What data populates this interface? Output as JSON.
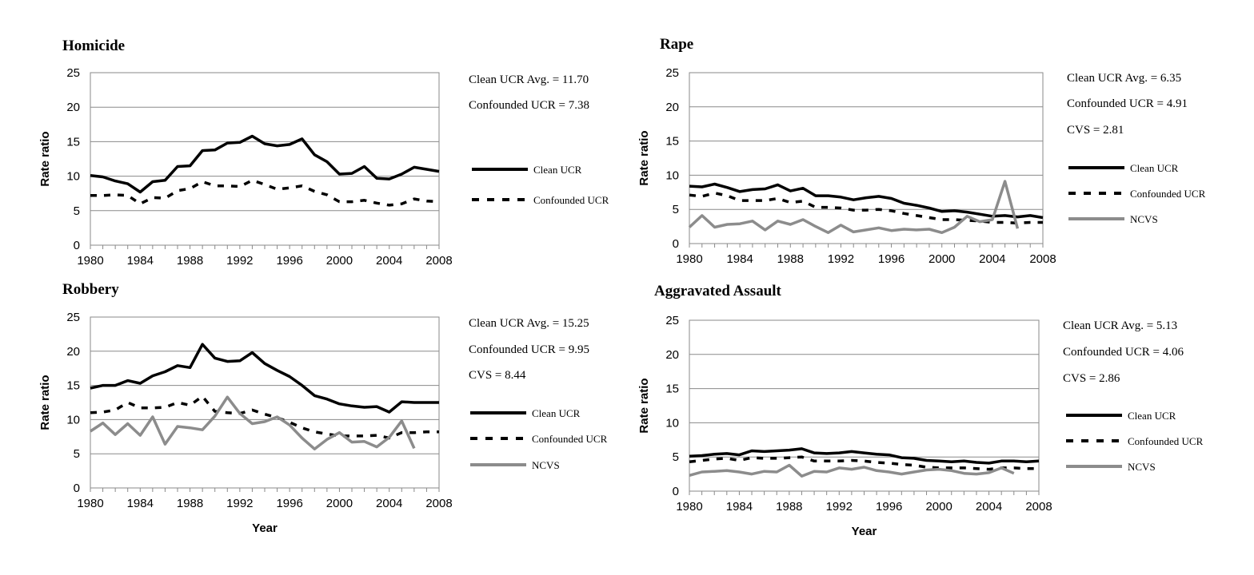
{
  "chart_data": [
    {
      "type": "line",
      "title": "Homicide",
      "ylabel": "Rate ratio",
      "xlabel": "",
      "ylim": [
        0,
        25
      ],
      "yticks": [
        "0",
        "5",
        "10",
        "15",
        "20",
        "25"
      ],
      "xticks": [
        "1980",
        "1984",
        "1988",
        "1992",
        "1996",
        "2000",
        "2004",
        "2008"
      ],
      "xrange": [
        1980,
        2008
      ],
      "stats": [
        "Clean UCR Avg. = 11.70",
        "Confounded UCR = 7.38"
      ],
      "legend_position": "right",
      "series": [
        {
          "name": "Clean UCR",
          "style": "solid",
          "color": "#000000",
          "x": [
            1980,
            1981,
            1982,
            1983,
            1984,
            1985,
            1986,
            1987,
            1988,
            1989,
            1990,
            1991,
            1992,
            1993,
            1994,
            1995,
            1996,
            1997,
            1998,
            1999,
            2000,
            2001,
            2002,
            2003,
            2004,
            2005,
            2006,
            2007,
            2008
          ],
          "values": [
            10.1,
            9.9,
            9.3,
            8.9,
            7.7,
            9.2,
            9.4,
            11.4,
            11.5,
            13.7,
            13.8,
            14.8,
            14.9,
            15.8,
            14.7,
            14.4,
            14.6,
            15.4,
            13.1,
            12.1,
            10.3,
            10.4,
            11.4,
            9.7,
            9.6,
            10.3,
            11.3,
            11.0,
            10.7
          ]
        },
        {
          "name": "Confounded UCR",
          "style": "dashed",
          "color": "#000000",
          "x": [
            1980,
            1981,
            1982,
            1983,
            1984,
            1985,
            1986,
            1987,
            1988,
            1989,
            1990,
            1991,
            1992,
            1993,
            1994,
            1995,
            1996,
            1997,
            1998,
            1999,
            2000,
            2001,
            2002,
            2003,
            2004,
            2005,
            2006,
            2007,
            2008
          ],
          "values": [
            7.2,
            7.2,
            7.3,
            7.2,
            6.0,
            6.9,
            6.8,
            7.9,
            8.2,
            9.2,
            8.6,
            8.6,
            8.5,
            9.4,
            8.8,
            8.1,
            8.3,
            8.6,
            7.8,
            7.3,
            6.3,
            6.3,
            6.5,
            6.1,
            5.8,
            6.0,
            6.7,
            6.4,
            6.3
          ]
        }
      ]
    },
    {
      "type": "line",
      "title": "Rape",
      "ylabel": "Rate ratio",
      "xlabel": "",
      "ylim": [
        0,
        25
      ],
      "yticks": [
        "0",
        "5",
        "10",
        "15",
        "20",
        "25"
      ],
      "xticks": [
        "1980",
        "1984",
        "1988",
        "1992",
        "1996",
        "2000",
        "2004",
        "2008"
      ],
      "xrange": [
        1980,
        2008
      ],
      "stats": [
        "Clean UCR Avg. = 6.35",
        "Confounded UCR = 4.91",
        "CVS = 2.81"
      ],
      "legend_position": "right",
      "series": [
        {
          "name": "Clean UCR",
          "style": "solid",
          "color": "#000000",
          "x": [
            1980,
            1981,
            1982,
            1983,
            1984,
            1985,
            1986,
            1987,
            1988,
            1989,
            1990,
            1991,
            1992,
            1993,
            1994,
            1995,
            1996,
            1997,
            1998,
            1999,
            2000,
            2001,
            2002,
            2003,
            2004,
            2005,
            2006,
            2007,
            2008
          ],
          "values": [
            8.4,
            8.3,
            8.7,
            8.2,
            7.6,
            7.9,
            8.0,
            8.6,
            7.7,
            8.1,
            7.0,
            7.0,
            6.8,
            6.4,
            6.7,
            6.9,
            6.6,
            5.9,
            5.6,
            5.2,
            4.7,
            4.8,
            4.6,
            4.3,
            4.0,
            4.1,
            3.9,
            4.1,
            3.8
          ]
        },
        {
          "name": "Confounded UCR",
          "style": "dashed",
          "color": "#000000",
          "x": [
            1980,
            1981,
            1982,
            1983,
            1984,
            1985,
            1986,
            1987,
            1988,
            1989,
            1990,
            1991,
            1992,
            1993,
            1994,
            1995,
            1996,
            1997,
            1998,
            1999,
            2000,
            2001,
            2002,
            2003,
            2004,
            2005,
            2006,
            2007,
            2008
          ],
          "values": [
            7.1,
            6.9,
            7.4,
            7.0,
            6.3,
            6.3,
            6.3,
            6.6,
            6.0,
            6.2,
            5.3,
            5.3,
            5.2,
            4.9,
            4.9,
            5.0,
            4.8,
            4.4,
            4.1,
            3.8,
            3.5,
            3.5,
            3.4,
            3.3,
            3.1,
            3.1,
            3.0,
            3.1,
            3.1
          ]
        },
        {
          "name": "NCVS",
          "style": "solid",
          "color": "#8c8c8c",
          "x": [
            1980,
            1981,
            1982,
            1983,
            1984,
            1985,
            1986,
            1987,
            1988,
            1989,
            1990,
            1991,
            1992,
            1993,
            1994,
            1995,
            1996,
            1997,
            1998,
            1999,
            2000,
            2001,
            2002,
            2003,
            2004,
            2005,
            2006
          ],
          "values": [
            2.4,
            4.1,
            2.4,
            2.8,
            2.9,
            3.3,
            2.0,
            3.3,
            2.8,
            3.5,
            2.5,
            1.6,
            2.7,
            1.7,
            2.0,
            2.3,
            1.9,
            2.1,
            2.0,
            2.1,
            1.6,
            2.4,
            4.0,
            3.2,
            3.5,
            9.1,
            2.2
          ]
        }
      ]
    },
    {
      "type": "line",
      "title": "Robbery",
      "ylabel": "Rate ratio",
      "xlabel": "Year",
      "ylim": [
        0,
        25
      ],
      "yticks": [
        "0",
        "5",
        "10",
        "15",
        "20",
        "25"
      ],
      "xticks": [
        "1980",
        "1984",
        "1988",
        "1992",
        "1996",
        "2000",
        "2004",
        "2008"
      ],
      "xrange": [
        1980,
        2008
      ],
      "stats": [
        "Clean UCR Avg. = 15.25",
        "Confounded UCR = 9.95",
        "CVS = 8.44"
      ],
      "legend_position": "right",
      "series": [
        {
          "name": "Clean UCR",
          "style": "solid",
          "color": "#000000",
          "x": [
            1980,
            1981,
            1982,
            1983,
            1984,
            1985,
            1986,
            1987,
            1988,
            1989,
            1990,
            1991,
            1992,
            1993,
            1994,
            1995,
            1996,
            1997,
            1998,
            1999,
            2000,
            2001,
            2002,
            2003,
            2004,
            2005,
            2006,
            2007,
            2008
          ],
          "values": [
            14.6,
            15.0,
            15.0,
            15.7,
            15.3,
            16.4,
            17.0,
            17.9,
            17.6,
            21.0,
            19.0,
            18.5,
            18.6,
            19.8,
            18.2,
            17.2,
            16.3,
            15.0,
            13.5,
            13.0,
            12.3,
            12.0,
            11.8,
            11.9,
            11.1,
            12.6,
            12.5,
            12.5,
            12.5
          ]
        },
        {
          "name": "Confounded UCR",
          "style": "dashed",
          "color": "#000000",
          "x": [
            1980,
            1981,
            1982,
            1983,
            1984,
            1985,
            1986,
            1987,
            1988,
            1989,
            1990,
            1991,
            1992,
            1993,
            1994,
            1995,
            1996,
            1997,
            1998,
            1999,
            2000,
            2001,
            2002,
            2003,
            2004,
            2005,
            2006,
            2007,
            2008
          ],
          "values": [
            11.0,
            11.1,
            11.4,
            12.5,
            11.7,
            11.7,
            11.8,
            12.5,
            12.1,
            13.4,
            11.2,
            11.0,
            10.9,
            11.4,
            10.8,
            10.3,
            9.6,
            8.8,
            8.2,
            7.9,
            7.6,
            7.6,
            7.6,
            7.7,
            7.3,
            8.1,
            8.1,
            8.2,
            8.2
          ]
        },
        {
          "name": "NCVS",
          "style": "solid",
          "color": "#8c8c8c",
          "x": [
            1980,
            1981,
            1982,
            1983,
            1984,
            1985,
            1986,
            1987,
            1988,
            1989,
            1990,
            1991,
            1992,
            1993,
            1994,
            1995,
            1996,
            1997,
            1998,
            1999,
            2000,
            2001,
            2002,
            2003,
            2004,
            2005,
            2006
          ],
          "values": [
            8.3,
            9.5,
            7.8,
            9.4,
            7.7,
            10.4,
            6.4,
            9.0,
            8.8,
            8.5,
            10.5,
            13.3,
            10.9,
            9.4,
            9.7,
            10.4,
            9.2,
            7.3,
            5.7,
            7.1,
            8.1,
            6.7,
            6.8,
            6.0,
            7.4,
            9.8,
            5.8
          ]
        }
      ]
    },
    {
      "type": "line",
      "title": "Aggravated Assault",
      "ylabel": "Rate ratio",
      "xlabel": "Year",
      "ylim": [
        0,
        25
      ],
      "yticks": [
        "0",
        "5",
        "10",
        "15",
        "20",
        "25"
      ],
      "xticks": [
        "1980",
        "1984",
        "1988",
        "1992",
        "1996",
        "2000",
        "2004",
        "2008"
      ],
      "xrange": [
        1980,
        2008
      ],
      "stats": [
        "Clean UCR Avg. = 5.13",
        "Confounded UCR = 4.06",
        "CVS = 2.86"
      ],
      "legend_position": "right",
      "series": [
        {
          "name": "Clean UCR",
          "style": "solid",
          "color": "#000000",
          "x": [
            1980,
            1981,
            1982,
            1983,
            1984,
            1985,
            1986,
            1987,
            1988,
            1989,
            1990,
            1991,
            1992,
            1993,
            1994,
            1995,
            1996,
            1997,
            1998,
            1999,
            2000,
            2001,
            2002,
            2003,
            2004,
            2005,
            2006,
            2007,
            2008
          ],
          "values": [
            5.1,
            5.2,
            5.4,
            5.5,
            5.3,
            5.9,
            5.8,
            5.9,
            6.0,
            6.2,
            5.6,
            5.5,
            5.6,
            5.8,
            5.6,
            5.4,
            5.3,
            4.9,
            4.8,
            4.5,
            4.4,
            4.3,
            4.4,
            4.2,
            4.1,
            4.4,
            4.4,
            4.3,
            4.4
          ]
        },
        {
          "name": "Confounded UCR",
          "style": "dashed",
          "color": "#000000",
          "x": [
            1980,
            1981,
            1982,
            1983,
            1984,
            1985,
            1986,
            1987,
            1988,
            1989,
            1990,
            1991,
            1992,
            1993,
            1994,
            1995,
            1996,
            1997,
            1998,
            1999,
            2000,
            2001,
            2002,
            2003,
            2004,
            2005,
            2006,
            2007,
            2008
          ],
          "values": [
            4.3,
            4.5,
            4.7,
            4.8,
            4.5,
            4.9,
            4.8,
            4.8,
            4.9,
            5.0,
            4.4,
            4.4,
            4.4,
            4.5,
            4.4,
            4.2,
            4.1,
            3.9,
            3.8,
            3.5,
            3.4,
            3.4,
            3.4,
            3.3,
            3.2,
            3.4,
            3.4,
            3.3,
            3.3
          ]
        },
        {
          "name": "NCVS",
          "style": "solid",
          "color": "#8c8c8c",
          "x": [
            1980,
            1981,
            1982,
            1983,
            1984,
            1985,
            1986,
            1987,
            1988,
            1989,
            1990,
            1991,
            1992,
            1993,
            1994,
            1995,
            1996,
            1997,
            1998,
            1999,
            2000,
            2001,
            2002,
            2003,
            2004,
            2005,
            2006
          ],
          "values": [
            2.3,
            2.8,
            2.9,
            3.0,
            2.8,
            2.5,
            2.9,
            2.8,
            3.8,
            2.2,
            2.9,
            2.8,
            3.4,
            3.2,
            3.5,
            3.0,
            2.8,
            2.5,
            2.8,
            3.1,
            3.2,
            3.0,
            2.6,
            2.5,
            2.7,
            3.4,
            2.6
          ]
        }
      ]
    }
  ]
}
